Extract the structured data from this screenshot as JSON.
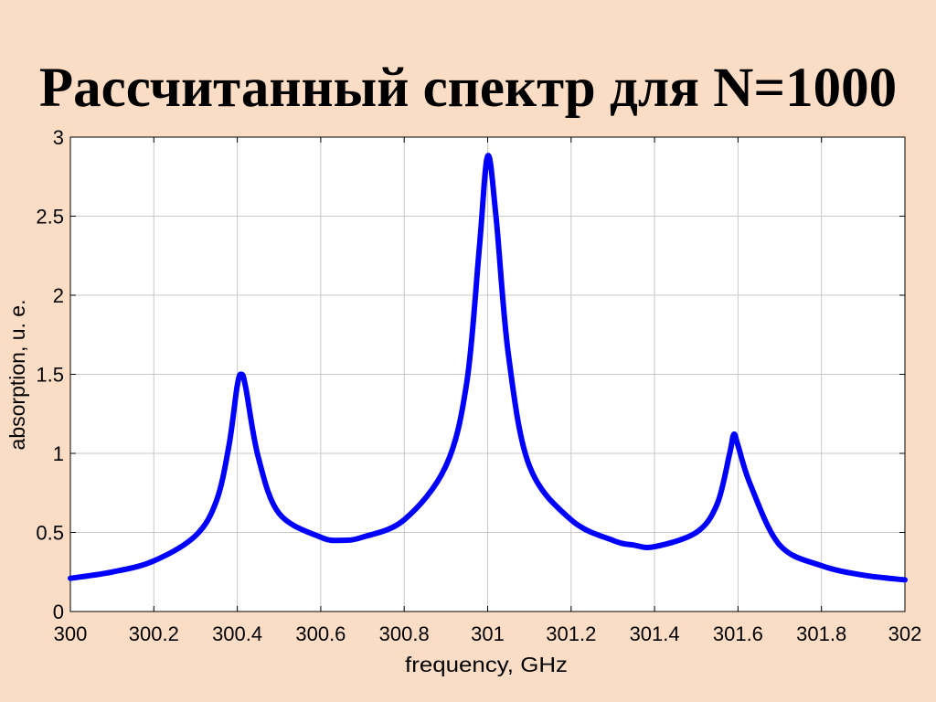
{
  "slide": {
    "title": "Рассчитанный спектр для N=1000"
  },
  "chart_data": {
    "type": "line",
    "title": "",
    "xlabel": "frequency, GHz",
    "ylabel": "absorption, u. e.",
    "xlim": [
      300,
      302
    ],
    "ylim": [
      0,
      3
    ],
    "xticks": [
      "300",
      "300.2",
      "300.4",
      "300.6",
      "300.8",
      "301",
      "301.2",
      "301.4",
      "301.6",
      "301.8",
      "302"
    ],
    "yticks": [
      "0",
      "0.5",
      "1",
      "1.5",
      "2",
      "2.5",
      "3"
    ],
    "grid": true,
    "legend": "none",
    "line_color": "#0000ff",
    "background_color": "#ffffff",
    "series": [
      {
        "x": [
          300.0,
          300.1,
          300.2,
          300.3,
          300.35,
          300.38,
          300.4,
          300.41,
          300.42,
          300.45,
          300.5,
          300.6,
          300.65,
          300.7,
          300.8,
          300.9,
          300.95,
          300.98,
          301.0,
          301.02,
          301.05,
          301.1,
          301.2,
          301.3,
          301.35,
          301.4,
          301.5,
          301.55,
          301.58,
          301.59,
          301.6,
          301.63,
          301.7,
          301.8,
          301.9,
          302.0
        ],
        "y": [
          0.21,
          0.25,
          0.32,
          0.48,
          0.7,
          1.05,
          1.43,
          1.5,
          1.42,
          0.98,
          0.62,
          0.47,
          0.45,
          0.47,
          0.58,
          0.92,
          1.45,
          2.3,
          2.88,
          2.5,
          1.62,
          0.92,
          0.58,
          0.45,
          0.42,
          0.41,
          0.5,
          0.68,
          1.0,
          1.12,
          1.05,
          0.8,
          0.42,
          0.29,
          0.23,
          0.2
        ]
      }
    ]
  }
}
